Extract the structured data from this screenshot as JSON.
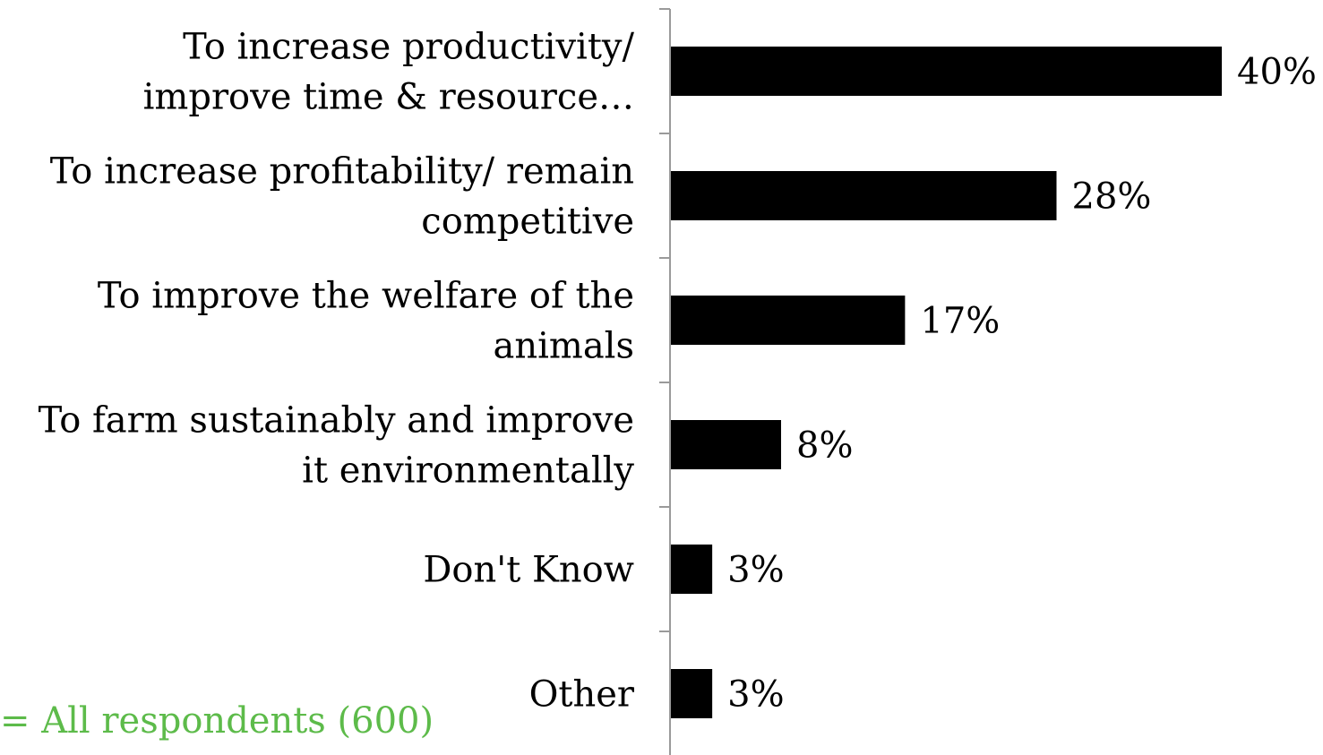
{
  "chart_data": {
    "type": "bar",
    "orientation": "horizontal",
    "categories": [
      [
        "To increase productivity/",
        "improve time & resource…"
      ],
      [
        "To increase profitability/ remain",
        "competitive"
      ],
      [
        "To improve the welfare of the",
        "animals"
      ],
      [
        "To farm sustainably and improve",
        "it environmentally"
      ],
      [
        "Don't Know"
      ],
      [
        "Other"
      ]
    ],
    "values": [
      40,
      28,
      17,
      8,
      3,
      3
    ],
    "value_labels": [
      "40%",
      "28%",
      "17%",
      "8%",
      "3%",
      "3%"
    ],
    "bar_color": "#000000",
    "grid": false,
    "legend": "none"
  },
  "footnote": "= All respondents (600)",
  "colors": {
    "footnote": "#5dbb4a",
    "axis": "#9a9a9a"
  }
}
